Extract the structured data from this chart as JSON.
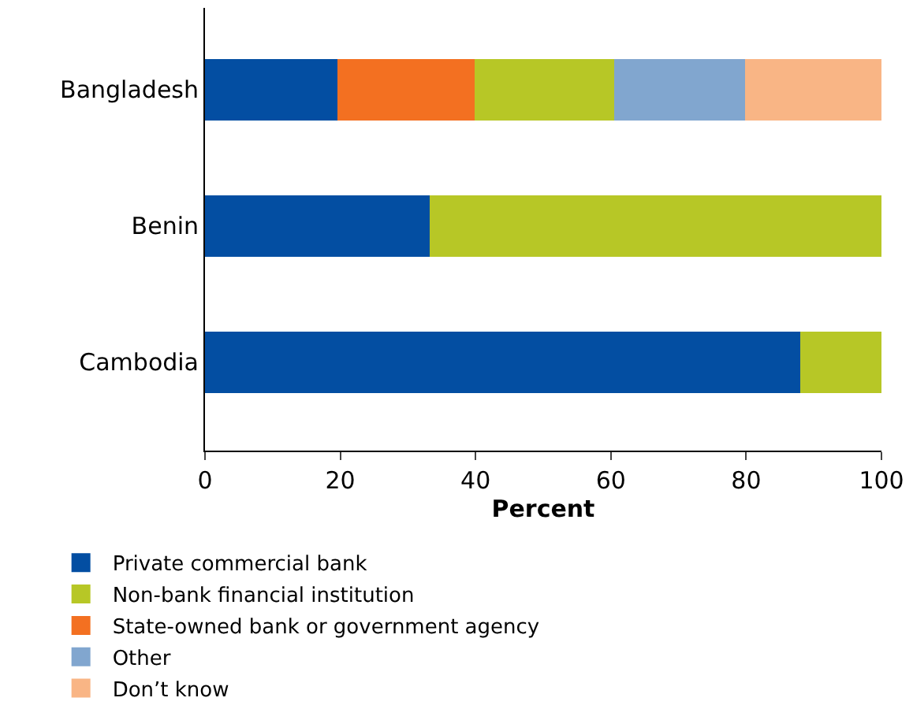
{
  "chart_data": {
    "type": "bar",
    "orientation": "horizontal",
    "stacked": true,
    "xlabel": "Percent",
    "categories": [
      "Bangladesh",
      "Benin",
      "Cambodia"
    ],
    "series": [
      {
        "name": "Private commercial bank",
        "color": "#034ea2",
        "values": [
          19.6,
          33.2,
          88.0
        ]
      },
      {
        "name": "State-owned bank or government agency",
        "color": "#f37021",
        "values": [
          20.3,
          null,
          null
        ]
      },
      {
        "name": "Non-bank financial institution",
        "color": "#b7c726",
        "values": [
          20.6,
          66.8,
          12.0
        ]
      },
      {
        "name": "Other",
        "color": "#81a6cf",
        "values": [
          19.3,
          null,
          null
        ]
      },
      {
        "name": "Don’t know",
        "color": "#f9b585",
        "values": [
          20.2,
          null,
          null
        ]
      }
    ],
    "xlim": [
      0,
      100
    ],
    "xticks": [
      0,
      20,
      40,
      60,
      80,
      100
    ],
    "legend": "bottom"
  }
}
